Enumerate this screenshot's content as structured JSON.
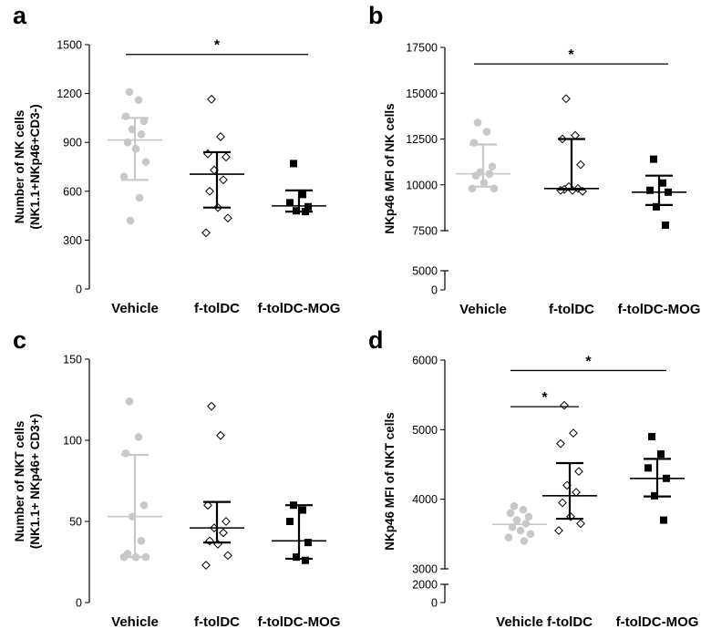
{
  "chart_data": [
    {
      "type": "scatter",
      "panel": "a",
      "ylabel_lines": [
        "Number of NK cells",
        "(NK1.1+NKp46+CD3-)"
      ],
      "categories": [
        "Vehicle",
        "f-tolDC",
        "f-tolDC-MOG"
      ],
      "ylim": [
        0,
        1500
      ],
      "yticks": [
        0,
        300,
        600,
        900,
        1200,
        1500
      ],
      "series": [
        {
          "category": "Vehicle",
          "marker": "circle",
          "color": "#c8c8c8",
          "values": [
            1210,
            1160,
            1060,
            1030,
            980,
            950,
            900,
            860,
            780,
            690,
            560,
            420
          ],
          "center": 915,
          "upper": 1050,
          "lower": 670
        },
        {
          "category": "f-tolDC",
          "marker": "diamond-open",
          "color": "#000000",
          "values": [
            1165,
            935,
            830,
            810,
            730,
            670,
            600,
            500,
            435,
            345
          ],
          "center": 705,
          "upper": 840,
          "lower": 500
        },
        {
          "category": "f-tolDC-MOG",
          "marker": "square",
          "color": "#000000",
          "values": [
            770,
            580,
            530,
            505,
            480,
            475
          ],
          "center": 510,
          "upper": 605,
          "lower": 475
        }
      ],
      "significance": [
        {
          "from": 0,
          "to": 2,
          "label": "*",
          "y": 1440
        }
      ]
    },
    {
      "type": "scatter",
      "panel": "b",
      "ylabel_lines": [
        "NKp46 MFI of NK cells"
      ],
      "categories": [
        "Vehicle",
        "f-tolDC",
        "f-tolDC-MOG"
      ],
      "ylim": [
        0,
        17500
      ],
      "yticks": [
        0,
        5000,
        7500,
        10000,
        12500,
        15000,
        17500
      ],
      "axis_break": [
        5000,
        7500
      ],
      "series": [
        {
          "category": "Vehicle",
          "marker": "circle",
          "color": "#c8c8c8",
          "values": [
            13400,
            12900,
            12300,
            11000,
            10700,
            10600,
            10500,
            10100,
            9800,
            9800
          ],
          "center": 10600,
          "upper": 12200,
          "lower": 9900
        },
        {
          "category": "f-tolDC",
          "marker": "diamond-open",
          "color": "#000000",
          "values": [
            14700,
            12700,
            12500,
            11100,
            9900,
            9800,
            9750,
            9700,
            9650,
            9700
          ],
          "center": 9800,
          "upper": 12500,
          "lower": 9750
        },
        {
          "category": "f-tolDC-MOG",
          "marker": "square",
          "color": "#000000",
          "values": [
            11400,
            10100,
            9700,
            9600,
            8800,
            7800
          ],
          "center": 9600,
          "upper": 10500,
          "lower": 8900
        }
      ],
      "significance": [
        {
          "from": 0,
          "to": 2,
          "label": "*",
          "y": 16600
        }
      ]
    },
    {
      "type": "scatter",
      "panel": "c",
      "ylabel_lines": [
        "Number of NKT cells",
        "(NK1.1+ NKp46+ CD3+)"
      ],
      "categories": [
        "Vehicle",
        "f-tolDC",
        "f-tolDC-MOG"
      ],
      "ylim": [
        0,
        150
      ],
      "yticks": [
        0,
        50,
        100,
        150
      ],
      "series": [
        {
          "category": "Vehicle",
          "marker": "circle",
          "color": "#c8c8c8",
          "values": [
            124,
            102,
            92,
            60,
            53,
            38,
            30,
            28,
            28,
            28
          ],
          "center": 53,
          "upper": 91,
          "lower": 28
        },
        {
          "category": "f-tolDC",
          "marker": "diamond-open",
          "color": "#000000",
          "values": [
            121,
            103,
            60,
            50,
            46,
            43,
            38,
            36,
            29,
            23
          ],
          "center": 46,
          "upper": 62,
          "lower": 37
        },
        {
          "category": "f-tolDC-MOG",
          "marker": "square",
          "color": "#000000",
          "values": [
            60,
            57,
            50,
            37,
            28,
            26
          ],
          "center": 38,
          "upper": 60,
          "lower": 27
        }
      ],
      "significance": []
    },
    {
      "type": "scatter",
      "panel": "d",
      "ylabel_lines": [
        "NKp46 MFI of NKT cells"
      ],
      "categories": [
        "Vehicle",
        "f-tolDC",
        "f-tolDC-MOG"
      ],
      "ylim": [
        0,
        6000
      ],
      "yticks": [
        0,
        2000,
        3000,
        4000,
        5000,
        6000
      ],
      "axis_break": [
        2000,
        3000
      ],
      "series": [
        {
          "category": "Vehicle",
          "marker": "circle",
          "color": "#c8c8c8",
          "values": [
            3900,
            3850,
            3800,
            3750,
            3700,
            3650,
            3600,
            3550,
            3500,
            3450,
            3400
          ],
          "center": 3640,
          "upper": 3640,
          "lower": 3640
        },
        {
          "category": "f-tolDC",
          "marker": "diamond-open",
          "color": "#000000",
          "values": [
            5350,
            4950,
            4800,
            4400,
            4200,
            4100,
            3950,
            3750,
            3650,
            3550
          ],
          "center": 4050,
          "upper": 4520,
          "lower": 3720
        },
        {
          "category": "f-tolDC-MOG",
          "marker": "square",
          "color": "#000000",
          "values": [
            4900,
            4650,
            4450,
            4300,
            4050,
            3700
          ],
          "center": 4300,
          "upper": 4580,
          "lower": 4040
        }
      ],
      "significance": [
        {
          "from": 0,
          "to": 1,
          "label": "*",
          "y": 5330
        },
        {
          "from": 0,
          "to": 2,
          "label": "*",
          "y": 5850
        }
      ]
    }
  ]
}
